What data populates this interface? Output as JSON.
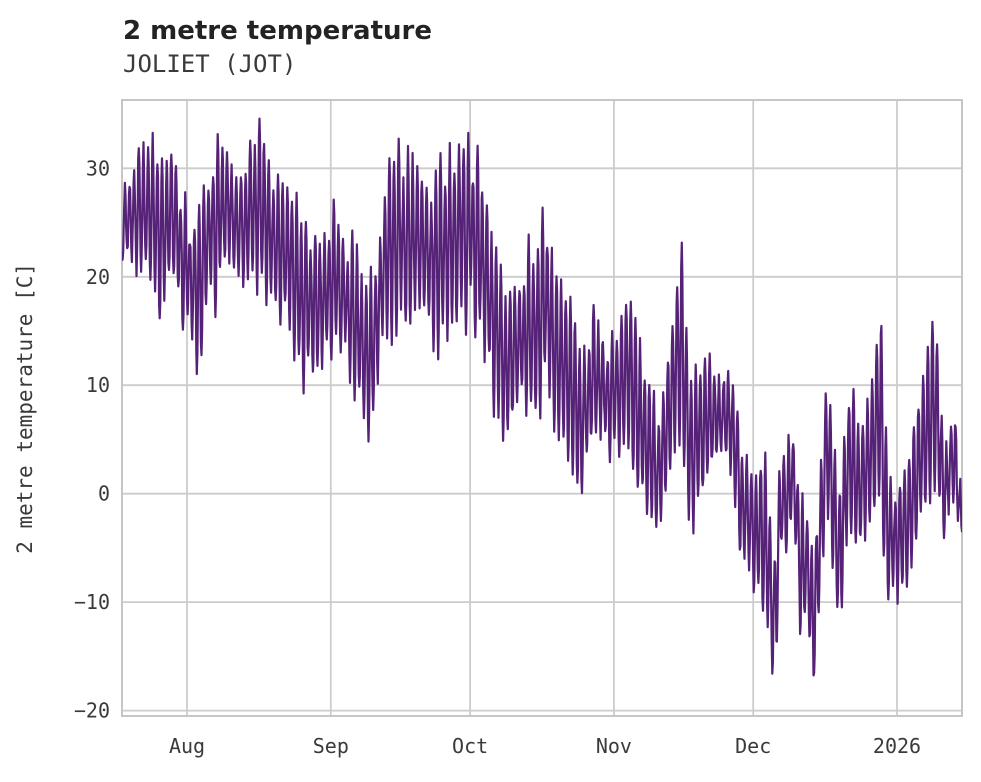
{
  "header": {
    "title": "2 metre temperature",
    "subtitle": "JOLIET (JOT)"
  },
  "chart_data": {
    "type": "line",
    "title": "2 metre temperature",
    "subtitle": "JOLIET (JOT)",
    "xlabel": "",
    "ylabel": "2 metre temperature [C]",
    "legend": "none",
    "grid": true,
    "background_color": "#ffffff",
    "grid_color": "#cccccc",
    "spine_color": "#c6c6c6",
    "line_color": "#552277",
    "text_color": "#3a3a3a",
    "ylim": [
      -20.5,
      36.3
    ],
    "x_span_days": 181,
    "yticks": [
      {
        "value": 30,
        "label": "30"
      },
      {
        "value": 20,
        "label": "20"
      },
      {
        "value": 10,
        "label": "10"
      },
      {
        "value": 0,
        "label": "0"
      },
      {
        "value": -10,
        "label": "−10"
      },
      {
        "value": -20,
        "label": "−20"
      }
    ],
    "xticks": [
      {
        "day": 14,
        "label": "Aug"
      },
      {
        "day": 45,
        "label": "Sep"
      },
      {
        "day": 75,
        "label": "Oct"
      },
      {
        "day": 106,
        "label": "Nov"
      },
      {
        "day": 136,
        "label": "Dec"
      },
      {
        "day": 167,
        "label": "2026"
      }
    ],
    "series": [
      {
        "name": "2 metre temperature [C]",
        "samples_per_day": 8,
        "description": "hourly 2m temperature, diurnal cycle around a daily midline; envelope entries are [day_index, daily_midline_C, diurnal_amplitude_C]",
        "envelope": [
          [
            0,
            24.5,
            3.5
          ],
          [
            3,
            25.5,
            4.5
          ],
          [
            6,
            27,
            6.5
          ],
          [
            8,
            23.5,
            7
          ],
          [
            11,
            26,
            6.5
          ],
          [
            13,
            22,
            6
          ],
          [
            14.5,
            19.5,
            6
          ],
          [
            16.5,
            19,
            5.5
          ],
          [
            19,
            24,
            6
          ],
          [
            22,
            26.5,
            6.5
          ],
          [
            26,
            24.5,
            5
          ],
          [
            30,
            26.5,
            7
          ],
          [
            33,
            23,
            5
          ],
          [
            36,
            21.5,
            6.5
          ],
          [
            39.5,
            17,
            6.5
          ],
          [
            42.5,
            17.5,
            5.5
          ],
          [
            45.5,
            20,
            6
          ],
          [
            48,
            18.5,
            5.5
          ],
          [
            52,
            13,
            6.5
          ],
          [
            54,
            12.5,
            6
          ],
          [
            57,
            23,
            7.5
          ],
          [
            60,
            23.5,
            7
          ],
          [
            63.5,
            24,
            7.5
          ],
          [
            66.5,
            21,
            6
          ],
          [
            69.5,
            22,
            8
          ],
          [
            73,
            24.5,
            7
          ],
          [
            77,
            23.5,
            7.5
          ],
          [
            80.5,
            15,
            7
          ],
          [
            82.5,
            11.5,
            6
          ],
          [
            86,
            14,
            6.5
          ],
          [
            89,
            15,
            7
          ],
          [
            91.5,
            18,
            7
          ],
          [
            94,
            12,
            6
          ],
          [
            97,
            10,
            7.5
          ],
          [
            99,
            5.5,
            5.5
          ],
          [
            101.5,
            12,
            5.5
          ],
          [
            104,
            9,
            5
          ],
          [
            107,
            9.5,
            5.5
          ],
          [
            109,
            12,
            6.5
          ],
          [
            111.5,
            7,
            6
          ],
          [
            115.5,
            1.5,
            5.5
          ],
          [
            118,
            8,
            7
          ],
          [
            120.5,
            14,
            8
          ],
          [
            122.5,
            3,
            6.5
          ],
          [
            124.5,
            6,
            5
          ],
          [
            128,
            7.5,
            4
          ],
          [
            131,
            7.5,
            4.5
          ],
          [
            133.5,
            -1,
            5.5
          ],
          [
            136.5,
            -3.5,
            4.5
          ],
          [
            138.5,
            -4,
            6
          ],
          [
            140.5,
            -12,
            6.5
          ],
          [
            142,
            -1.5,
            4
          ],
          [
            145,
            1,
            4.5
          ],
          [
            146.3,
            -8,
            6
          ],
          [
            147.6,
            -6,
            5
          ],
          [
            149,
            -12,
            6
          ],
          [
            152,
            5,
            6
          ],
          [
            154.3,
            -6,
            5.5
          ],
          [
            157,
            4,
            6
          ],
          [
            159,
            0,
            5
          ],
          [
            161,
            3,
            4.5
          ],
          [
            163.5,
            8,
            7.5
          ],
          [
            164.8,
            -4,
            6
          ],
          [
            166.6,
            -4.5,
            5.5
          ],
          [
            169,
            -3,
            5
          ],
          [
            172,
            3.5,
            5
          ],
          [
            175.2,
            8,
            8
          ],
          [
            177.4,
            0,
            4
          ],
          [
            179.5,
            4,
            5
          ],
          [
            181,
            -3,
            2.5
          ]
        ]
      }
    ]
  }
}
